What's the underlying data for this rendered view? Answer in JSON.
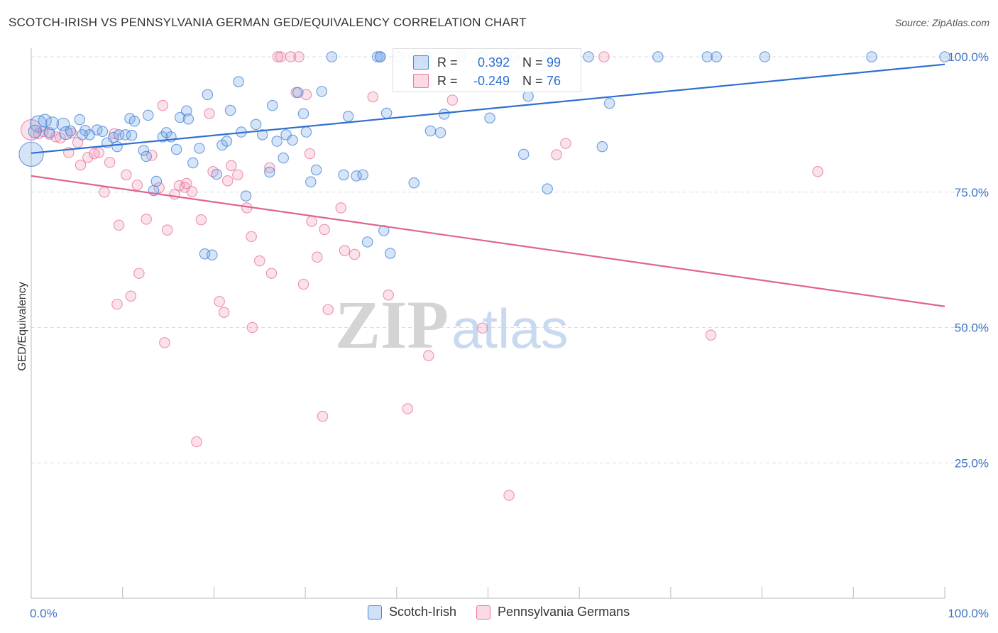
{
  "header": {
    "title": "SCOTCH-IRISH VS PENNSYLVANIA GERMAN GED/EQUIVALENCY CORRELATION CHART",
    "source": "Source: ZipAtlas.com"
  },
  "stats": {
    "r_label": "R =",
    "n_label": "N =",
    "series1": {
      "r": "0.392",
      "n": "99"
    },
    "series2": {
      "r": "-0.249",
      "n": "76"
    }
  },
  "legend": {
    "series1": "Scotch-Irish",
    "series2": "Pennsylvania Germans"
  },
  "watermark": {
    "part1": "ZIP",
    "part2": "atlas"
  },
  "colors": {
    "blue": "#4a86d8",
    "blue_fill": "rgba(120,165,230,0.30)",
    "blue_line": "#2f6fd0",
    "pink": "#e8779f",
    "pink_fill": "rgba(240,150,180,0.28)",
    "pink_line": "#e0648f",
    "axis_text": "#3d74c9",
    "grid": "#dddddd"
  },
  "chart_data": {
    "type": "scatter",
    "xlabel": "",
    "ylabel": "GED/Equivalency",
    "xlim": [
      0,
      100
    ],
    "ylim": [
      0,
      100
    ],
    "x_tick_labels": [
      {
        "value": 0,
        "label": "0.0%"
      },
      {
        "value": 100,
        "label": "100.0%"
      }
    ],
    "y_tick_labels": [
      {
        "value": 25,
        "label": "25.0%"
      },
      {
        "value": 50,
        "label": "50.0%"
      },
      {
        "value": 75,
        "label": "75.0%"
      },
      {
        "value": 100,
        "label": "100.0%"
      }
    ],
    "grid": true,
    "legend_position": "bottom-center",
    "series": [
      {
        "name": "Scotch-Irish",
        "trendline": [
          [
            0,
            82.2
          ],
          [
            100,
            98.6
          ]
        ],
        "points": [
          [
            0.0,
            82.0,
            1.9
          ],
          [
            0.8,
            87.6,
            1.3
          ],
          [
            1.5,
            88.2,
            1.0
          ],
          [
            2.3,
            87.7,
            1.0
          ],
          [
            3.5,
            87.5,
            1.0
          ],
          [
            3.8,
            85.9,
            1.0
          ],
          [
            5.3,
            88.4,
            0.8
          ],
          [
            5.9,
            86.4,
            0.8
          ],
          [
            6.4,
            85.6,
            0.8
          ],
          [
            5.6,
            85.6,
            0.8
          ],
          [
            7.8,
            86.2,
            0.8
          ],
          [
            8.3,
            84.1,
            0.8
          ],
          [
            7.2,
            86.5,
            0.8
          ],
          [
            9.0,
            85.1,
            0.8
          ],
          [
            9.6,
            85.6,
            0.8
          ],
          [
            10.3,
            85.6,
            0.8
          ],
          [
            11.0,
            85.5,
            0.8
          ],
          [
            9.4,
            83.4,
            0.8
          ],
          [
            10.8,
            88.6,
            0.8
          ],
          [
            11.3,
            88.1,
            0.8
          ],
          [
            12.8,
            89.2,
            0.8
          ],
          [
            12.3,
            82.7,
            0.8
          ],
          [
            12.6,
            81.6,
            0.8
          ],
          [
            13.4,
            75.3,
            0.8
          ],
          [
            13.7,
            77.0,
            0.8
          ],
          [
            14.4,
            85.2,
            0.8
          ],
          [
            14.8,
            86.0,
            0.8
          ],
          [
            15.3,
            85.2,
            0.8
          ],
          [
            15.9,
            82.9,
            0.8
          ],
          [
            16.3,
            88.8,
            0.8
          ],
          [
            17.0,
            90.0,
            0.8
          ],
          [
            17.2,
            88.5,
            0.8
          ],
          [
            17.7,
            80.4,
            0.8
          ],
          [
            18.4,
            83.1,
            0.8
          ],
          [
            19.0,
            63.6,
            0.8
          ],
          [
            19.3,
            93.0,
            0.8
          ],
          [
            19.8,
            63.4,
            0.8
          ],
          [
            20.3,
            78.3,
            0.8
          ],
          [
            20.9,
            83.7,
            0.8
          ],
          [
            21.4,
            84.4,
            0.8
          ],
          [
            21.8,
            90.1,
            0.8
          ],
          [
            22.7,
            95.4,
            0.8
          ],
          [
            23.0,
            86.1,
            0.8
          ],
          [
            23.5,
            74.3,
            0.8
          ],
          [
            24.6,
            87.5,
            0.8
          ],
          [
            25.3,
            85.6,
            0.8
          ],
          [
            26.1,
            78.7,
            0.8
          ],
          [
            26.4,
            91.0,
            0.8
          ],
          [
            26.9,
            84.4,
            0.8
          ],
          [
            27.6,
            81.3,
            0.8
          ],
          [
            27.9,
            85.6,
            0.8
          ],
          [
            28.6,
            84.6,
            0.8
          ],
          [
            29.2,
            93.4,
            0.8
          ],
          [
            29.8,
            89.5,
            0.8
          ],
          [
            30.1,
            86.1,
            0.8
          ],
          [
            30.6,
            76.9,
            0.8
          ],
          [
            31.2,
            79.1,
            0.8
          ],
          [
            31.8,
            93.6,
            0.8
          ],
          [
            32.9,
            100.0,
            0.8
          ],
          [
            34.2,
            78.2,
            0.8
          ],
          [
            34.7,
            89.0,
            0.8
          ],
          [
            35.6,
            78.0,
            0.8
          ],
          [
            36.3,
            78.2,
            0.8
          ],
          [
            36.8,
            65.8,
            0.8
          ],
          [
            37.9,
            100.0,
            0.8
          ],
          [
            38.2,
            100.0,
            0.8
          ],
          [
            38.2,
            100.0,
            0.8
          ],
          [
            38.6,
            67.9,
            0.8
          ],
          [
            38.9,
            89.6,
            0.8
          ],
          [
            39.3,
            63.7,
            0.8
          ],
          [
            40.2,
            100.0,
            0.8
          ],
          [
            41.9,
            100.0,
            0.8
          ],
          [
            41.9,
            76.7,
            0.8
          ],
          [
            43.3,
            100.0,
            0.8
          ],
          [
            43.3,
            100.0,
            0.8
          ],
          [
            43.7,
            86.3,
            0.8
          ],
          [
            44.8,
            86.0,
            0.8
          ],
          [
            45.2,
            89.4,
            0.8
          ],
          [
            47.0,
            100.0,
            0.8
          ],
          [
            49.4,
            100.0,
            0.8
          ],
          [
            50.2,
            88.7,
            0.8
          ],
          [
            52.0,
            100.0,
            0.8
          ],
          [
            52.8,
            100.0,
            0.8
          ],
          [
            53.9,
            82.0,
            0.8
          ],
          [
            54.4,
            92.7,
            0.8
          ],
          [
            56.4,
            100.0,
            0.8
          ],
          [
            56.5,
            75.6,
            0.8
          ],
          [
            61.0,
            100.0,
            0.8
          ],
          [
            62.5,
            83.4,
            0.8
          ],
          [
            63.3,
            91.4,
            0.8
          ],
          [
            68.6,
            100.0,
            0.8
          ],
          [
            74.0,
            100.0,
            0.8
          ],
          [
            75.0,
            100.0,
            0.8
          ],
          [
            80.3,
            100.0,
            0.8
          ],
          [
            92.0,
            100.0,
            0.8
          ],
          [
            100.0,
            100.0,
            0.8
          ],
          [
            0.4,
            86.2,
            1.0
          ],
          [
            2.0,
            86.0,
            0.8
          ],
          [
            4.3,
            86.3,
            0.8
          ]
        ]
      },
      {
        "name": "Pennsylvania Germans",
        "trendline": [
          [
            0,
            78.0
          ],
          [
            100,
            53.9
          ]
        ],
        "points": [
          [
            0.0,
            86.5,
            1.6
          ],
          [
            0.8,
            85.8,
            0.8
          ],
          [
            1.3,
            86.2,
            0.8
          ],
          [
            2.0,
            85.7,
            0.8
          ],
          [
            2.7,
            85.2,
            0.8
          ],
          [
            3.2,
            85.0,
            0.8
          ],
          [
            4.1,
            82.3,
            0.8
          ],
          [
            4.4,
            85.9,
            0.8
          ],
          [
            5.1,
            84.2,
            0.8
          ],
          [
            5.4,
            80.0,
            0.8
          ],
          [
            6.2,
            81.4,
            0.8
          ],
          [
            6.9,
            82.1,
            0.8
          ],
          [
            7.4,
            82.3,
            0.8
          ],
          [
            8.0,
            75.0,
            0.8
          ],
          [
            8.6,
            80.5,
            0.8
          ],
          [
            9.1,
            85.8,
            0.8
          ],
          [
            9.4,
            54.3,
            0.8
          ],
          [
            9.6,
            68.9,
            0.8
          ],
          [
            10.4,
            78.2,
            0.8
          ],
          [
            10.9,
            55.8,
            0.8
          ],
          [
            11.6,
            76.3,
            0.8
          ],
          [
            11.8,
            60.0,
            0.8
          ],
          [
            12.6,
            70.0,
            0.8
          ],
          [
            13.2,
            81.8,
            0.8
          ],
          [
            14.0,
            75.8,
            0.8
          ],
          [
            14.4,
            91.0,
            0.8
          ],
          [
            14.6,
            47.2,
            0.8
          ],
          [
            14.9,
            68.0,
            0.8
          ],
          [
            15.7,
            74.6,
            0.8
          ],
          [
            16.2,
            76.2,
            0.8
          ],
          [
            16.8,
            75.9,
            0.8
          ],
          [
            17.0,
            76.6,
            0.8
          ],
          [
            17.6,
            75.1,
            0.8
          ],
          [
            18.1,
            28.9,
            0.8
          ],
          [
            18.6,
            69.9,
            0.8
          ],
          [
            19.5,
            89.5,
            0.8
          ],
          [
            19.9,
            78.8,
            0.8
          ],
          [
            20.6,
            54.8,
            0.8
          ],
          [
            21.1,
            52.8,
            0.8
          ],
          [
            21.5,
            77.1,
            0.8
          ],
          [
            21.9,
            79.9,
            0.8
          ],
          [
            22.6,
            78.2,
            0.8
          ],
          [
            23.6,
            72.1,
            0.8
          ],
          [
            24.1,
            66.8,
            0.8
          ],
          [
            24.2,
            50.0,
            0.8
          ],
          [
            25.0,
            62.3,
            0.8
          ],
          [
            26.1,
            79.5,
            0.8
          ],
          [
            26.3,
            60.0,
            0.8
          ],
          [
            27.3,
            100.0,
            0.8
          ],
          [
            28.4,
            100.0,
            0.8
          ],
          [
            29.0,
            93.4,
            0.8
          ],
          [
            29.3,
            100.0,
            0.8
          ],
          [
            30.5,
            82.1,
            0.8
          ],
          [
            30.7,
            69.6,
            0.8
          ],
          [
            31.3,
            63.0,
            0.8
          ],
          [
            31.9,
            33.6,
            0.8
          ],
          [
            32.1,
            68.1,
            0.8
          ],
          [
            32.5,
            53.3,
            0.8
          ],
          [
            33.9,
            72.1,
            0.8
          ],
          [
            34.3,
            64.2,
            0.8
          ],
          [
            35.4,
            63.5,
            0.8
          ],
          [
            37.4,
            92.6,
            0.8
          ],
          [
            39.1,
            56.0,
            0.8
          ],
          [
            41.2,
            35.0,
            0.8
          ],
          [
            43.5,
            44.8,
            0.8
          ],
          [
            46.1,
            92.0,
            0.8
          ],
          [
            49.4,
            49.9,
            0.8
          ],
          [
            52.3,
            19.0,
            0.8
          ],
          [
            57.5,
            81.9,
            0.8
          ],
          [
            58.5,
            84.0,
            0.8
          ],
          [
            62.7,
            100.0,
            0.8
          ],
          [
            74.4,
            48.6,
            0.8
          ],
          [
            86.1,
            78.8,
            0.8
          ],
          [
            29.8,
            58.0,
            0.8
          ],
          [
            27.0,
            100.0,
            0.8
          ],
          [
            30.1,
            93.0,
            0.8
          ]
        ]
      }
    ]
  }
}
